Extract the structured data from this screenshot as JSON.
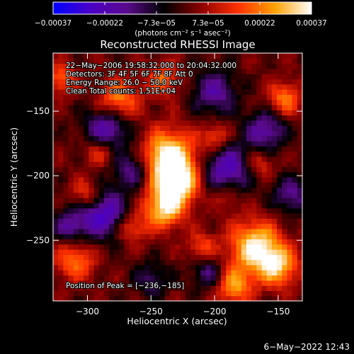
{
  "chart_data": {
    "type": "heatmap",
    "title": "Reconstructed RHESSI Image",
    "xlabel": "Heliocentric X (arcsec)",
    "ylabel": "Heliocentric Y (arcsec)",
    "xlim": [
      -327,
      -131
    ],
    "ylim": [
      -297,
      -105
    ],
    "x_ticks": [
      {
        "value": -300,
        "label": "−300"
      },
      {
        "value": -250,
        "label": "−250"
      },
      {
        "value": -200,
        "label": "−200"
      },
      {
        "value": -150,
        "label": "−150"
      }
    ],
    "y_ticks": [
      {
        "value": -150,
        "label": "−150"
      },
      {
        "value": -200,
        "label": "−200"
      },
      {
        "value": -250,
        "label": "−250"
      }
    ],
    "colorbar": {
      "range": [
        -0.00037,
        0.00037
      ],
      "colors": [
        "#0000ff",
        "#4a00c8",
        "#5a0a8c",
        "#000000",
        "#8b0000",
        "#ff3000",
        "#ffa000",
        "#ffffff"
      ],
      "tick_labels": [
        "−0.00037",
        "−0.00022",
        "−7.3e−05",
        "7.3e−05",
        "0.00022",
        "0.00037"
      ],
      "units_label": "(photons cm⁻² s⁻¹ asec⁻²)"
    },
    "annotations": {
      "line1": "22−May−2006 19:58:32.000 to 20:04:32.000",
      "line2": "Detectors: 3F 4F 5F 6F 7F 8F Att 0",
      "line3": "Energy Range: 26.0 − 50.0 keV",
      "line4": "Clean     Total counts: 1.51E+04"
    },
    "peak_label": "Position of Peak = [−236,−185]",
    "peak": [
      -236,
      -185
    ],
    "bright_regions": [
      {
        "x": -236,
        "y": -185,
        "intensity": 1.0,
        "radius": 14
      },
      {
        "x": -229,
        "y": -205,
        "intensity": 0.9,
        "radius": 12
      },
      {
        "x": -240,
        "y": -225,
        "intensity": 0.8,
        "radius": 11
      },
      {
        "x": -168,
        "y": -255,
        "intensity": 0.9,
        "radius": 14
      },
      {
        "x": -150,
        "y": -270,
        "intensity": 0.7,
        "radius": 11
      },
      {
        "x": -185,
        "y": -285,
        "intensity": 0.65,
        "radius": 10
      },
      {
        "x": -300,
        "y": -215,
        "intensity": 0.6,
        "radius": 9
      },
      {
        "x": -275,
        "y": -140,
        "intensity": 0.6,
        "radius": 11
      },
      {
        "x": -240,
        "y": -125,
        "intensity": 0.5,
        "radius": 9
      },
      {
        "x": -145,
        "y": -140,
        "intensity": 0.55,
        "radius": 9
      },
      {
        "x": -310,
        "y": -265,
        "intensity": 0.55,
        "radius": 11
      },
      {
        "x": -290,
        "y": -180,
        "intensity": 0.45,
        "radius": 9
      },
      {
        "x": -200,
        "y": -170,
        "intensity": 0.45,
        "radius": 8
      },
      {
        "x": -165,
        "y": -190,
        "intensity": 0.4,
        "radius": 8
      },
      {
        "x": -320,
        "y": -125,
        "intensity": 0.5,
        "radius": 8
      },
      {
        "x": -265,
        "y": -240,
        "intensity": 0.45,
        "radius": 8
      },
      {
        "x": -210,
        "y": -255,
        "intensity": 0.4,
        "radius": 8
      },
      {
        "x": -190,
        "y": -215,
        "intensity": 0.35,
        "radius": 8
      }
    ],
    "dark_regions": [
      {
        "x": -290,
        "y": -228,
        "intensity": -0.8,
        "radius": 14
      },
      {
        "x": -285,
        "y": -165,
        "intensity": -0.7,
        "radius": 12
      },
      {
        "x": -190,
        "y": -195,
        "intensity": -0.7,
        "radius": 14
      },
      {
        "x": -160,
        "y": -165,
        "intensity": -0.6,
        "radius": 11
      },
      {
        "x": -200,
        "y": -135,
        "intensity": -0.55,
        "radius": 12
      },
      {
        "x": -265,
        "y": -195,
        "intensity": -0.5,
        "radius": 10
      },
      {
        "x": -140,
        "y": -215,
        "intensity": -0.5,
        "radius": 10
      },
      {
        "x": -205,
        "y": -275,
        "intensity": -0.45,
        "radius": 9
      },
      {
        "x": -250,
        "y": -280,
        "intensity": -0.4,
        "radius": 9
      },
      {
        "x": -315,
        "y": -240,
        "intensity": -0.45,
        "radius": 9
      }
    ]
  },
  "footer": {
    "timestamp": "6−May−2022 12:43"
  }
}
